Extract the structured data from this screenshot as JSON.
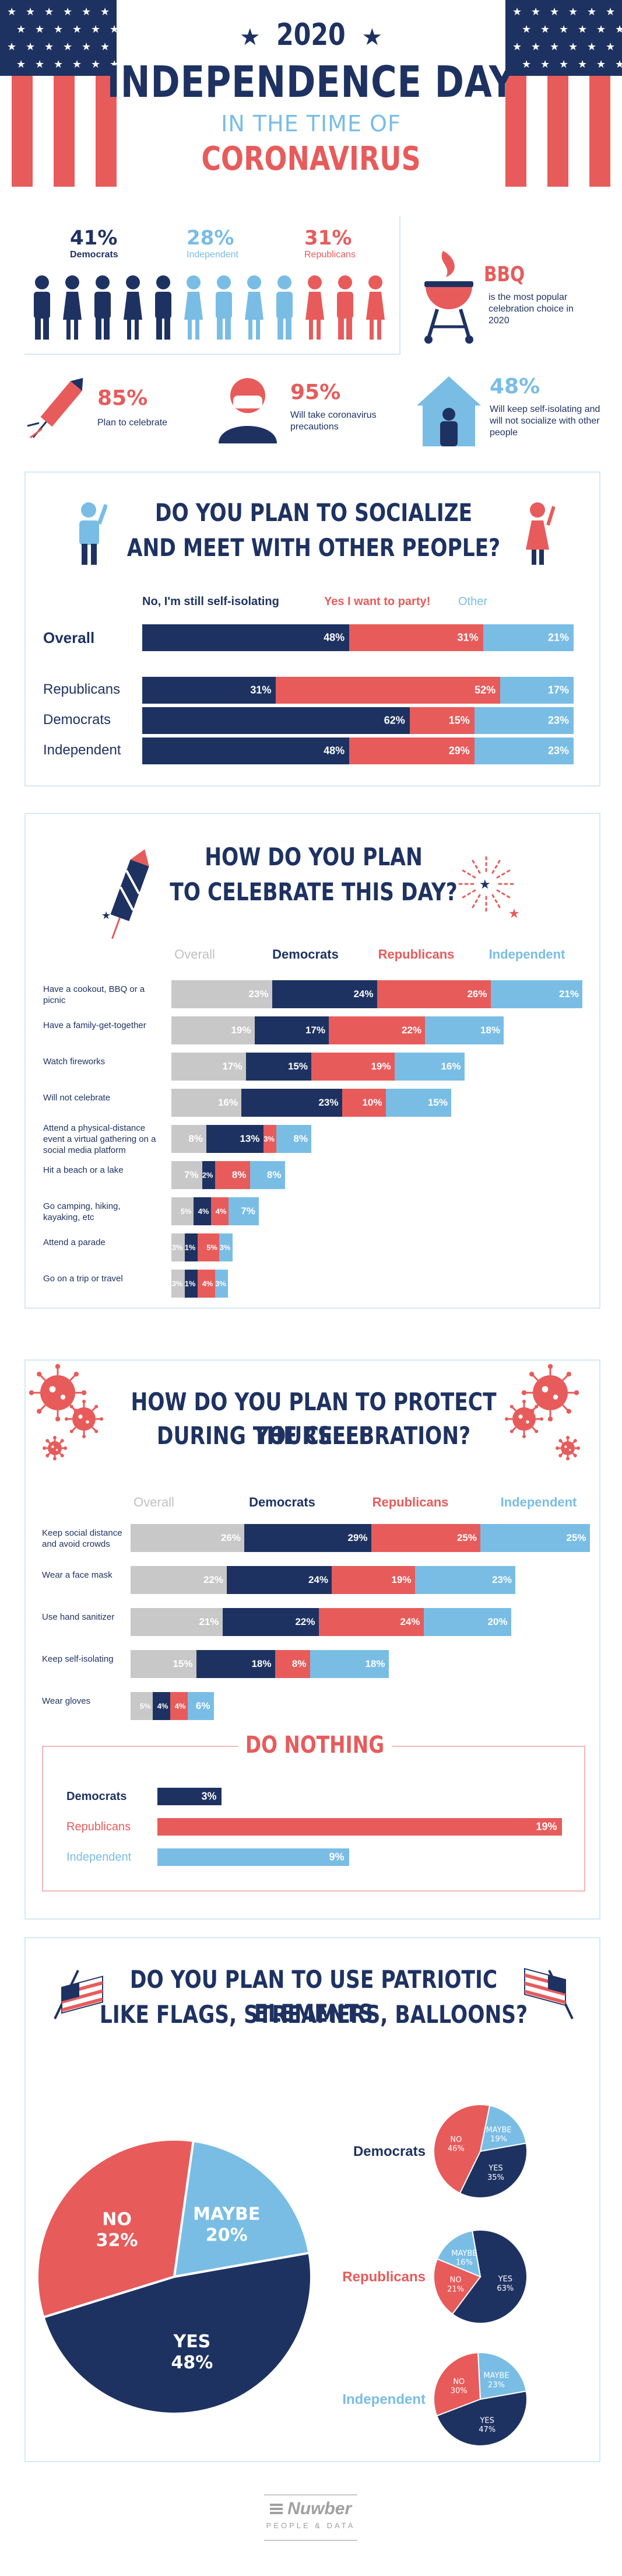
{
  "header": {
    "year": "2020",
    "title": "INDEPENDENCE DAY",
    "subtitle": "IN THE TIME OF",
    "topic": "CORONAVIRUS"
  },
  "party_split": {
    "democrats": {
      "pct": "41%",
      "label": "Democrats"
    },
    "independent": {
      "pct": "28%",
      "label": "Independent"
    },
    "republicans": {
      "pct": "31%",
      "label": "Republicans"
    }
  },
  "bbq": {
    "title": "BBQ",
    "text": "is the most popular celebration choice in 2020"
  },
  "celebrate": {
    "pct": "85%",
    "text": "Plan to celebrate"
  },
  "precautions": {
    "pct": "95%",
    "text": "Will take coronavirus precautions"
  },
  "isolating": {
    "pct": "48%",
    "text": "Will keep self-isolating and will not socialize with other people"
  },
  "socialize": {
    "title_line1": "DO YOU PLAN TO SOCIALIZE",
    "title_line2": "AND MEET WITH OTHER PEOPLE?",
    "legend": [
      "No, I'm still self-isolating",
      "Yes I want to party!",
      "Other"
    ]
  },
  "celebrate_section": {
    "title_line1": "HOW DO YOU PLAN",
    "title_line2": "TO CELEBRATE THIS DAY?",
    "columns": [
      "Overall",
      "Democrats",
      "Republicans",
      "Independent"
    ]
  },
  "protect_section": {
    "title_line1": "HOW DO YOU PLAN TO PROTECT YOURSELF",
    "title_line2": "DURING THE CELEBRATION?",
    "columns": [
      "Overall",
      "Democrats",
      "Republicans",
      "Independent"
    ],
    "nothing_title": "DO NOTHING"
  },
  "patriotic": {
    "title_line1": "DO YOU PLAN TO USE PATRIOTIC ELEMENTS",
    "title_line2": "LIKE FLAGS, STREAMERS, BALLOONS?"
  },
  "footer": {
    "brand": "Nuwber",
    "tagline": "PEOPLE & DATA"
  },
  "colors": {
    "navy": "#1e3262",
    "red": "#e85b5b",
    "blue": "#79bde5",
    "gray": "#c8c8c8"
  },
  "chart_data": [
    {
      "type": "bar",
      "stacked": true,
      "title": "DO YOU PLAN TO SOCIALIZE AND MEET WITH OTHER PEOPLE?",
      "categories": [
        "Overall",
        "Republicans",
        "Democrats",
        "Independent"
      ],
      "series": [
        {
          "name": "No, I'm still self-isolating",
          "values": [
            48,
            31,
            62,
            48
          ]
        },
        {
          "name": "Yes I want to party!",
          "values": [
            31,
            52,
            15,
            29
          ]
        },
        {
          "name": "Other",
          "values": [
            21,
            17,
            23,
            23
          ]
        }
      ]
    },
    {
      "type": "bar",
      "stacked": true,
      "title": "HOW DO YOU PLAN TO CELEBRATE THIS DAY?",
      "categories": [
        "Have a cookout, BBQ or a picnic",
        "Have a family-get-together",
        "Watch fireworks",
        "Will not celebrate",
        "Attend a physical-distance event a virtual gathering on a social media platform",
        "Hit a beach or a lake",
        "Go camping, hiking, kayaking, etc",
        "Attend a parade",
        "Go on a trip or travel"
      ],
      "series": [
        {
          "name": "Overall",
          "values": [
            23,
            19,
            17,
            16,
            8,
            7,
            5,
            3,
            3
          ]
        },
        {
          "name": "Democrats",
          "values": [
            24,
            17,
            15,
            23,
            13,
            2,
            4,
            1,
            1
          ]
        },
        {
          "name": "Republicans",
          "values": [
            26,
            22,
            19,
            10,
            3,
            8,
            4,
            5,
            4
          ]
        },
        {
          "name": "Independent",
          "values": [
            21,
            18,
            16,
            15,
            8,
            8,
            7,
            3,
            3
          ]
        }
      ]
    },
    {
      "type": "bar",
      "stacked": true,
      "title": "HOW DO YOU PLAN TO PROTECT YOURSELF DURING THE CELEBRATION?",
      "categories": [
        "Keep social distance and avoid crowds",
        "Wear a face mask",
        "Use hand sanitizer",
        "Keep self-isolating",
        "Wear gloves"
      ],
      "series": [
        {
          "name": "Overall",
          "values": [
            26,
            22,
            21,
            15,
            5
          ]
        },
        {
          "name": "Democrats",
          "values": [
            29,
            24,
            22,
            18,
            4
          ]
        },
        {
          "name": "Republicans",
          "values": [
            25,
            19,
            24,
            8,
            4
          ]
        },
        {
          "name": "Independent",
          "values": [
            25,
            23,
            20,
            18,
            6
          ]
        }
      ]
    },
    {
      "type": "bar",
      "title": "DO NOTHING",
      "categories": [
        "Democrats",
        "Republicans",
        "Independent"
      ],
      "values": [
        3,
        19,
        9
      ]
    },
    {
      "type": "pie",
      "title": "DO YOU PLAN TO USE PATRIOTIC ELEMENTS LIKE FLAGS, STREAMERS, BALLOONS?",
      "pies": [
        {
          "name": "",
          "slices": [
            {
              "label": "YES",
              "value": 48
            },
            {
              "label": "NO",
              "value": 32
            },
            {
              "label": "MAYBE",
              "value": 20
            }
          ]
        },
        {
          "name": "Democrats",
          "slices": [
            {
              "label": "YES",
              "value": 35
            },
            {
              "label": "NO",
              "value": 46
            },
            {
              "label": "MAYBE",
              "value": 19
            }
          ]
        },
        {
          "name": "Republicans",
          "slices": [
            {
              "label": "YES",
              "value": 63
            },
            {
              "label": "NO",
              "value": 21
            },
            {
              "label": "MAYBE",
              "value": 16
            }
          ]
        },
        {
          "name": "Independent",
          "slices": [
            {
              "label": "YES",
              "value": 47
            },
            {
              "label": "NO",
              "value": 30
            },
            {
              "label": "MAYBE",
              "value": 23
            }
          ]
        }
      ]
    }
  ]
}
